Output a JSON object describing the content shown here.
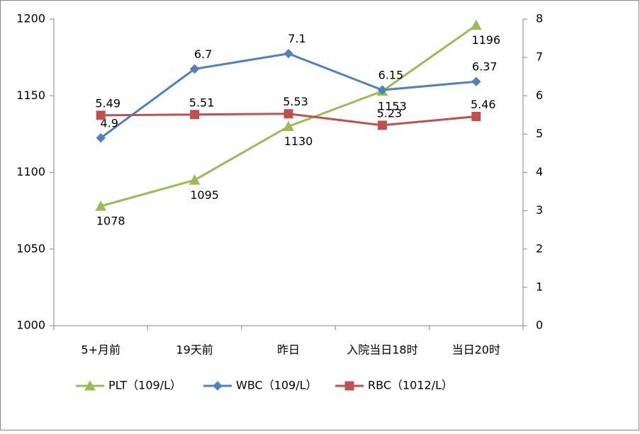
{
  "chart_data": {
    "type": "line",
    "categories": [
      "5+月前",
      "19天前",
      "昨日",
      "入院当日18时",
      "当日20时"
    ],
    "series": [
      {
        "name": "PLT（109/L）",
        "color": "#9bbb59",
        "marker": "triangle",
        "values": [
          1078,
          1095,
          1130,
          1153,
          1196
        ]
      },
      {
        "name": "WBC（109/L）",
        "color": "#4f81bd",
        "marker": "diamond",
        "axis": "y2",
        "values": [
          4.9,
          6.7,
          7.1,
          6.15,
          6.37
        ]
      },
      {
        "name": "RBC（1012/L）",
        "color": "#c0504d",
        "marker": "square",
        "axis": "y2",
        "values": [
          5.49,
          5.51,
          5.53,
          5.23,
          5.46
        ]
      }
    ],
    "ylim": [
      1000,
      1200
    ],
    "yticks": [
      1000,
      1050,
      1100,
      1150,
      1200
    ],
    "y2lim": [
      0,
      8
    ],
    "y2ticks": [
      0,
      1,
      2,
      3,
      4,
      5,
      6,
      7,
      8
    ],
    "legend": "bottom",
    "grid": false
  }
}
